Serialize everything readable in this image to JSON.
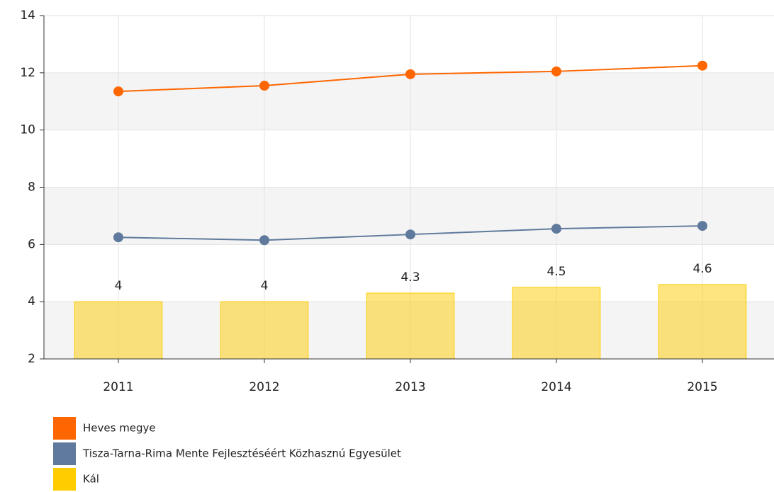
{
  "chart_data": {
    "type": "bar_line",
    "categories": [
      "2011",
      "2012",
      "2013",
      "2014",
      "2015"
    ],
    "series": [
      {
        "name": "Heves megye",
        "color": "#ff6600",
        "type": "line",
        "values": [
          11.35,
          11.55,
          11.95,
          12.05,
          12.25
        ]
      },
      {
        "name": "Tisza-Tarna-Rima Mente Fejlesztéséért Közhasznú Egyesület",
        "color": "#5f7a9c",
        "type": "line",
        "values": [
          6.25,
          6.15,
          6.35,
          6.55,
          6.65
        ]
      },
      {
        "name": "Kál",
        "color": "#ffcc00",
        "type": "bar",
        "values": [
          4,
          4,
          4.3,
          4.5,
          4.6
        ]
      }
    ],
    "ylim": [
      2,
      14
    ],
    "yticks": [
      2,
      4,
      6,
      8,
      10,
      12,
      14
    ],
    "grid": true,
    "legend": "bottom"
  }
}
